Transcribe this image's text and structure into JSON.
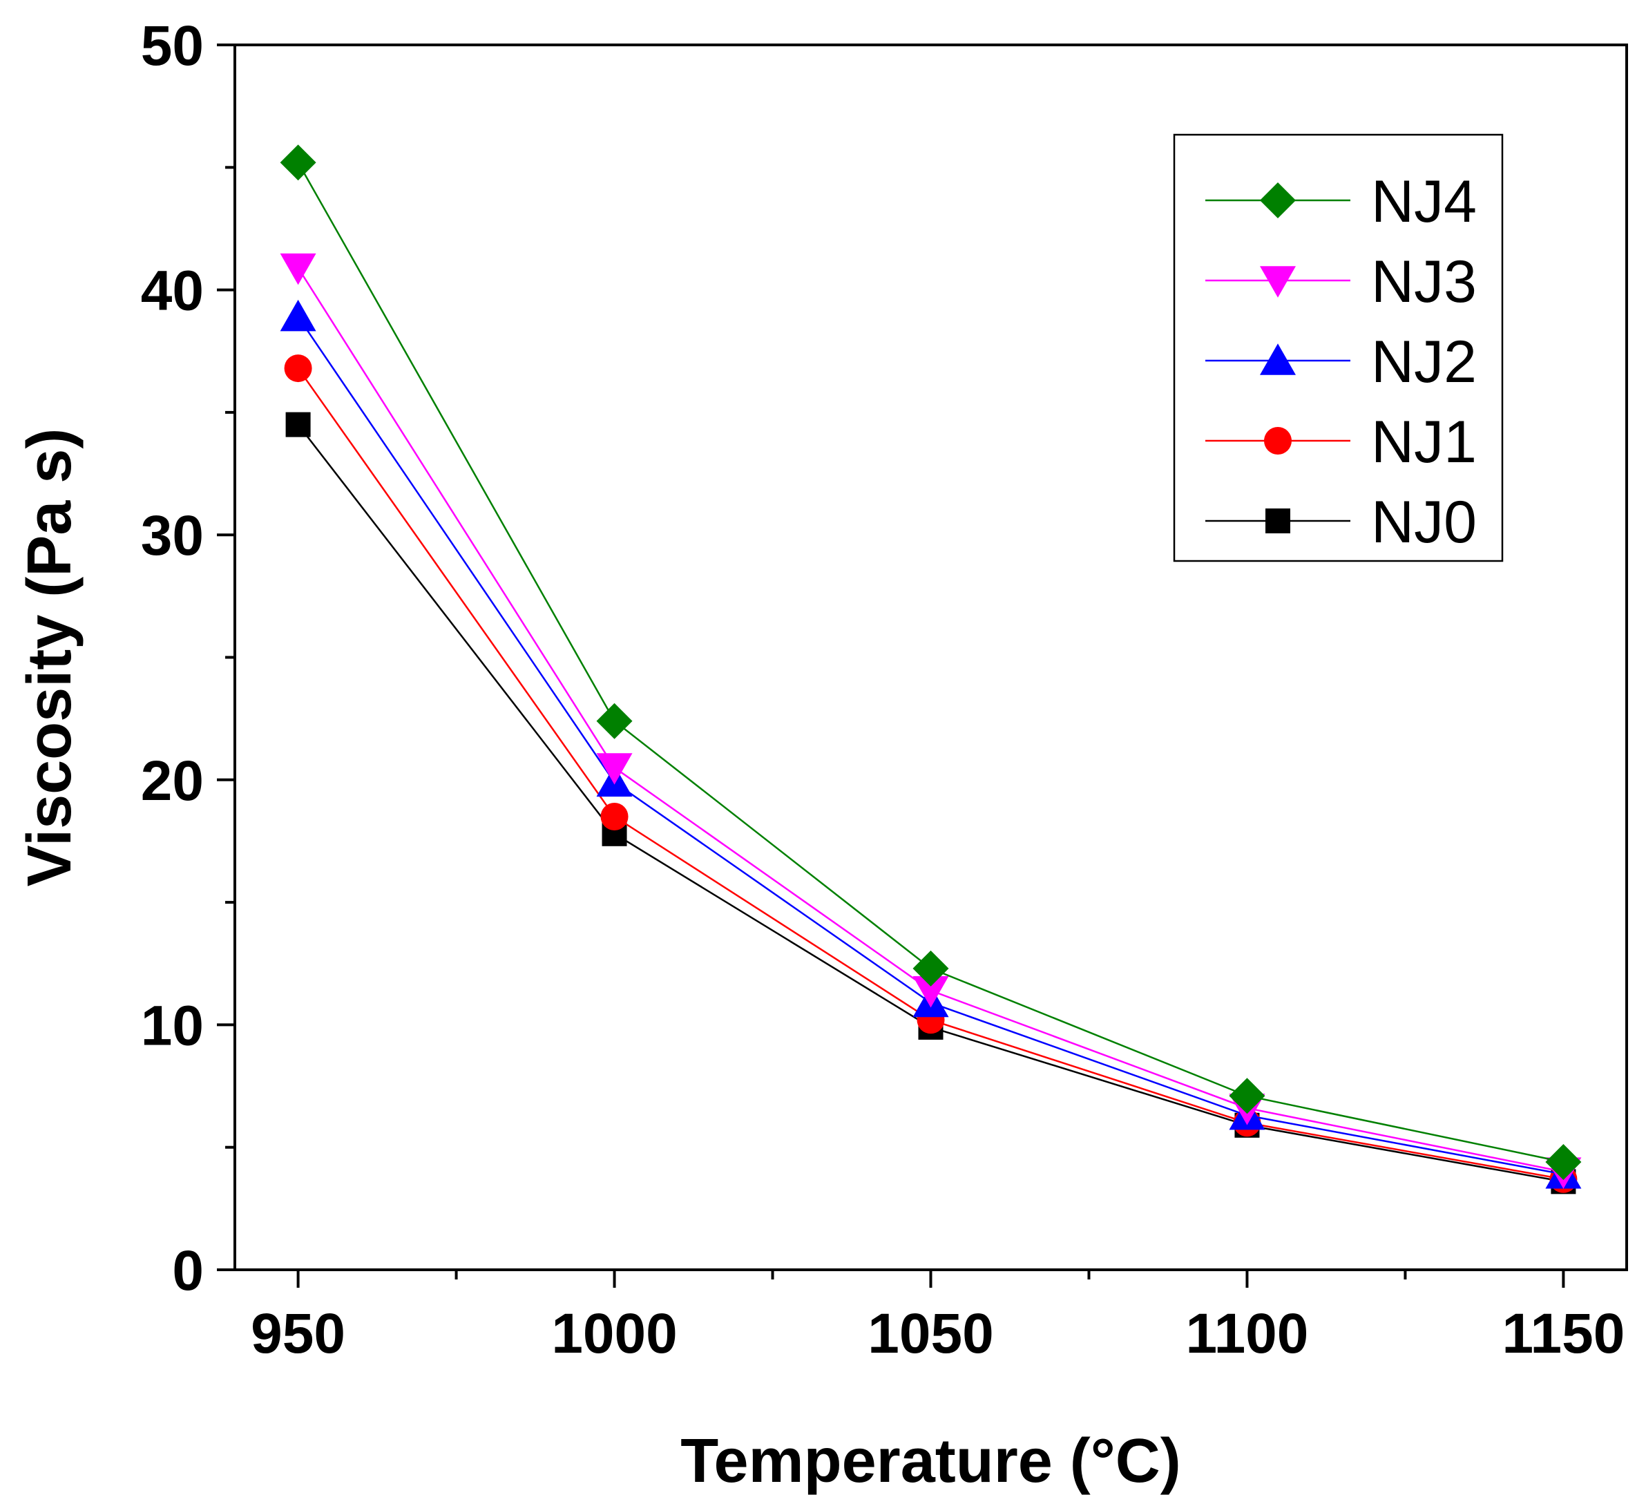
{
  "chart_data": {
    "type": "line",
    "title": "",
    "xlabel": "Temperature (°C)",
    "ylabel": "Viscosity (Pa s)",
    "x": [
      950,
      1000,
      1050,
      1100,
      1150
    ],
    "xlim": [
      940,
      1160
    ],
    "ylim": [
      0,
      50
    ],
    "xticks": [
      950,
      1000,
      1050,
      1100,
      1150
    ],
    "xticks_minor": [
      975,
      1025,
      1075,
      1125
    ],
    "yticks": [
      0,
      10,
      20,
      30,
      40,
      50
    ],
    "yticks_minor": [
      5,
      15,
      25,
      35,
      45
    ],
    "grid": false,
    "legend_position": "top-right",
    "series": [
      {
        "name": "NJ4",
        "color": "#008000",
        "marker": "diamond",
        "values": [
          45.2,
          22.4,
          12.3,
          7.1,
          4.4
        ]
      },
      {
        "name": "NJ3",
        "color": "#ff00ff",
        "marker": "triangle-down",
        "values": [
          40.9,
          20.5,
          11.4,
          6.6,
          4.0
        ]
      },
      {
        "name": "NJ2",
        "color": "#0000ff",
        "marker": "triangle-up",
        "values": [
          38.9,
          19.9,
          10.9,
          6.3,
          3.9
        ]
      },
      {
        "name": "NJ1",
        "color": "#ff0000",
        "marker": "circle",
        "values": [
          36.8,
          18.5,
          10.2,
          6.0,
          3.7
        ]
      },
      {
        "name": "NJ0",
        "color": "#000000",
        "marker": "square",
        "values": [
          34.5,
          17.8,
          9.9,
          5.9,
          3.6
        ]
      }
    ]
  }
}
